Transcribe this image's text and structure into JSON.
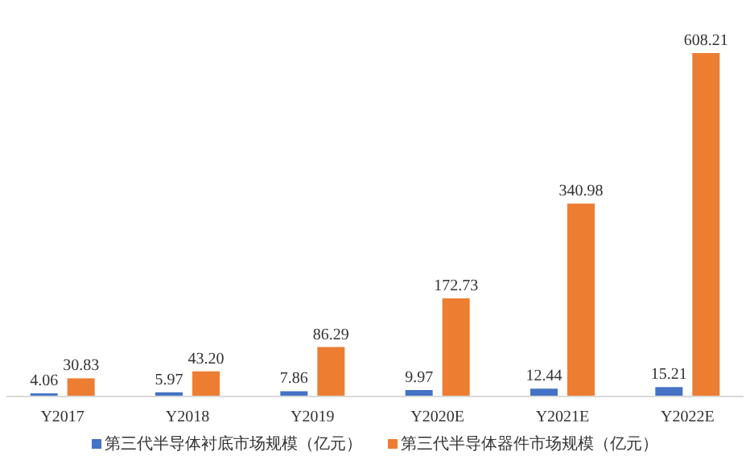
{
  "chart_data": {
    "type": "bar",
    "categories": [
      "Y2017",
      "Y2018",
      "Y2019",
      "Y2020E",
      "Y2021E",
      "Y2022E"
    ],
    "series": [
      {
        "name": "第三代半导体衬底市场规模（亿元）",
        "color": "#4472c4",
        "values": [
          4.06,
          5.97,
          7.86,
          9.97,
          12.44,
          15.21
        ],
        "value_labels": [
          "4.06",
          "5.97",
          "7.86",
          "9.97",
          "12.44",
          "15.21"
        ]
      },
      {
        "name": "第三代半导体器件市场规模（亿元）",
        "color": "#ed7d31",
        "values": [
          30.83,
          43.2,
          86.29,
          172.73,
          340.98,
          608.21
        ],
        "value_labels": [
          "30.83",
          "43.20",
          "86.29",
          "172.73",
          "340.98",
          "608.21"
        ]
      }
    ],
    "legend": "bottom"
  }
}
